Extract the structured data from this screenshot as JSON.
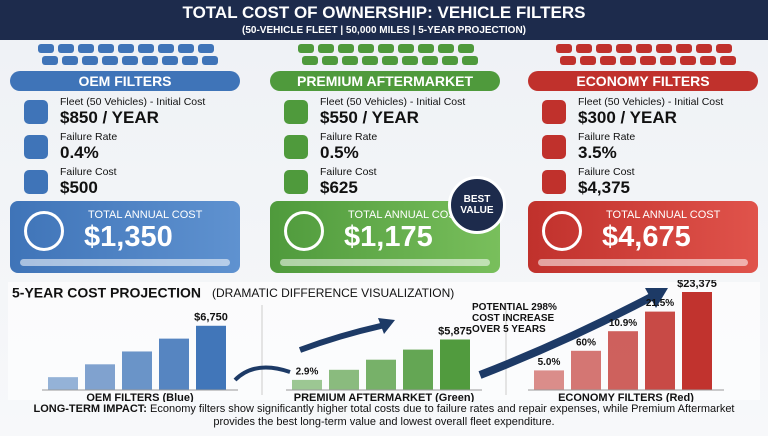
{
  "header": {
    "title": "TOTAL COST OF OWNERSHIP: VEHICLE FILTERS",
    "subtitle": "(50-VEHICLE FLEET | 50,000 MILES | 5-YEAR PROJECTION)"
  },
  "columns": [
    {
      "name": "OEM FILTERS",
      "color": "#3f74b8",
      "light": "#5f92d0",
      "items": [
        {
          "label": "Fleet (50 Vehicles) - Initial Cost",
          "value": "$850 / YEAR"
        },
        {
          "label": "Failure Rate",
          "value": "0.4%"
        },
        {
          "label": "Failure Cost",
          "value": "$500"
        }
      ],
      "total_label": "TOTAL ANNUAL COST",
      "total": "$1,350"
    },
    {
      "name": "PREMIUM AFTERMARKET",
      "color": "#4f9a3c",
      "light": "#79bf5c",
      "items": [
        {
          "label": "Fleet (50 Vehicles) - Initial Cost",
          "value": "$550 / YEAR"
        },
        {
          "label": "Failure Rate",
          "value": "0.5%"
        },
        {
          "label": "Failure Cost",
          "value": "$625"
        }
      ],
      "total_label": "TOTAL ANNUAL COST",
      "total": "$1,175",
      "badge": "BEST VALUE"
    },
    {
      "name": "ECONOMY FILTERS",
      "color": "#c0312c",
      "light": "#e0534b",
      "items": [
        {
          "label": "Fleet (50 Vehicles) - Initial Cost",
          "value": "$300 / YEAR"
        },
        {
          "label": "Failure Rate",
          "value": "3.5%"
        },
        {
          "label": "Failure Cost",
          "value": "$4,375"
        }
      ],
      "total_label": "TOTAL ANNUAL COST",
      "total": "$4,675"
    }
  ],
  "projection": {
    "title": "5-YEAR COST PROJECTION",
    "note": "(DRAMATIC DIFFERENCE VISUALIZATION)",
    "callout": "POTENTIAL 298% COST INCREASE OVER 5 YEARS",
    "groups": [
      {
        "label": "OEM FILTERS (Blue)",
        "color": "#3f74b8",
        "values": [
          1350,
          2700,
          4050,
          5400,
          6750
        ],
        "end_label": "$6,750",
        "ylim": [
          0,
          10300
        ],
        "annotations": []
      },
      {
        "label": "PREMIUM AFTERMARKET (Green)",
        "color": "#4f9a3c",
        "values": [
          1175,
          2350,
          3525,
          4700,
          5875
        ],
        "end_label": "$5,875",
        "ylim": [
          0,
          11400
        ],
        "annotations": [
          "2.9%",
          null,
          null,
          null,
          null
        ]
      },
      {
        "label": "ECONOMY FILTERS (Red)",
        "color": "#c0312c",
        "values": [
          4675,
          9350,
          14025,
          18700,
          23375
        ],
        "end_label": "$23,375",
        "ylim": [
          0,
          23375
        ],
        "annotations": [
          "5.0%",
          "60%",
          "10.9%",
          "21.5%",
          null
        ]
      }
    ]
  },
  "footer": {
    "lead": "LONG-TERM IMPACT:",
    "text": "Economy filters show significantly higher total costs due to failure rates and repair expenses, while Premium Aftermarket provides the best long-term value and lowest overall fleet expenditure."
  }
}
